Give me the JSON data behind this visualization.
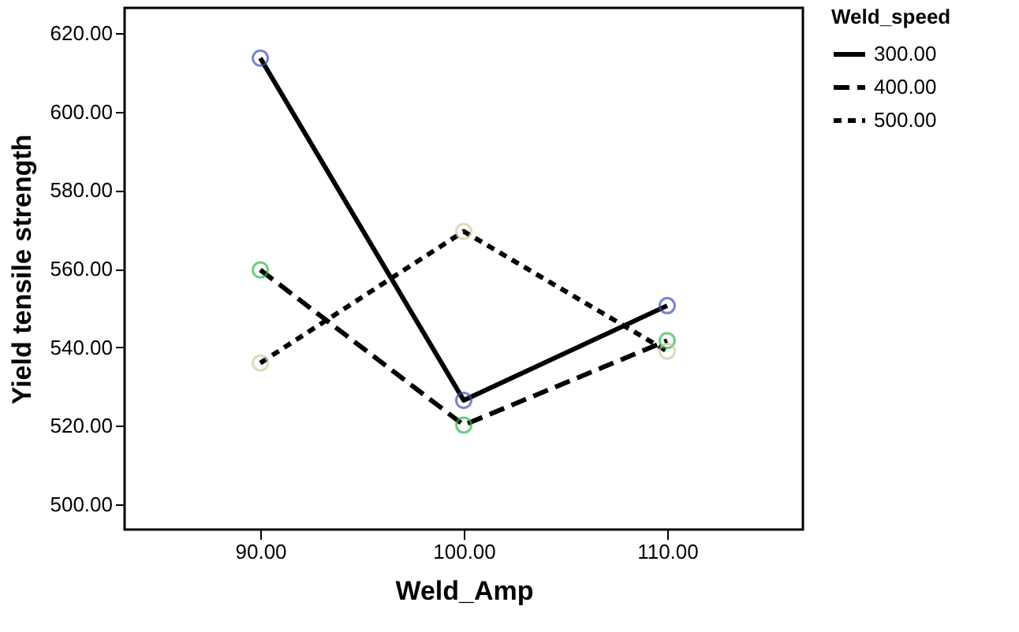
{
  "chart_data": {
    "type": "line",
    "xlabel": "Weld_Amp",
    "ylabel": "Yield tensile strength",
    "legend_title": "Weld_speed",
    "x": [
      90,
      100,
      110
    ],
    "series": [
      {
        "name": "300.00",
        "color": "#000000",
        "colors": [
          "#3f51b5",
          "#3f51b5",
          "#3f51b5"
        ],
        "line_style": "solid",
        "values": [
          613.6,
          526.5,
          550.6
        ]
      },
      {
        "name": "400.00",
        "color": "#000000",
        "colors": [
          "#2db84d",
          "#2db84d",
          "#2db84d"
        ],
        "line_style": "dashed",
        "values": [
          559.7,
          520.2,
          541.7
        ]
      },
      {
        "name": "500.00",
        "color": "#000000",
        "colors": [
          "#d2c9a0",
          "#d2c9a0",
          "#d2c9a0"
        ],
        "line_style": "dotted",
        "values": [
          536.0,
          569.5,
          539.0
        ]
      }
    ],
    "xlim": [
      83.33,
      116.67
    ],
    "xticks": [
      {
        "value": 90,
        "label": "90.00"
      },
      {
        "value": 100,
        "label": "100.00"
      },
      {
        "value": 110,
        "label": "110.00"
      }
    ],
    "ylim": [
      493.6,
      626.4
    ],
    "yticks": [
      {
        "value": 500,
        "label": "500.00"
      },
      {
        "value": 520,
        "label": "520.00"
      },
      {
        "value": 540,
        "label": "540.00"
      },
      {
        "value": 560,
        "label": "560.00"
      },
      {
        "value": 580,
        "label": "580.00"
      },
      {
        "value": 600,
        "label": "600.00"
      },
      {
        "value": 620,
        "label": "620.00"
      }
    ],
    "grid": false,
    "legend": "top right",
    "marker": "circle"
  }
}
